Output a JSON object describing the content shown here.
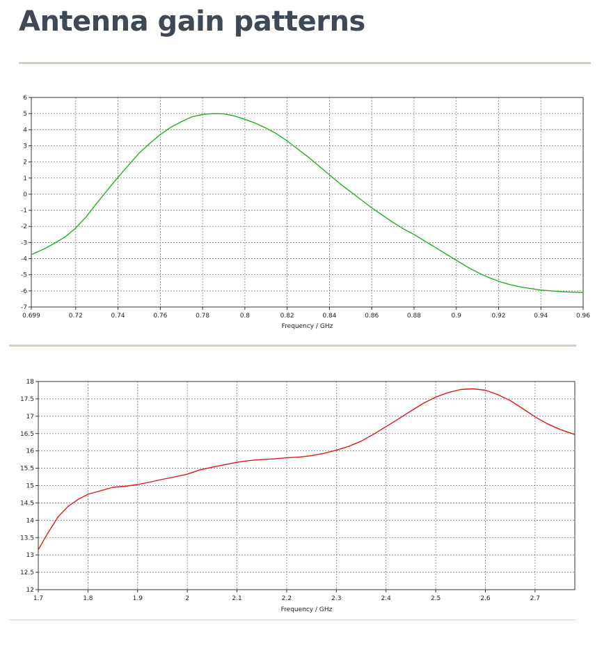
{
  "page": {
    "title": "Antenna gain patterns"
  },
  "chart_data": [
    {
      "type": "line",
      "title": "",
      "xlabel": "Frequency / GHz",
      "ylabel": "",
      "xlim": [
        0.699,
        0.96
      ],
      "ylim": [
        -7,
        6
      ],
      "grid": true,
      "x_ticks": [
        0.699,
        0.72,
        0.74,
        0.76,
        0.78,
        0.8,
        0.82,
        0.84,
        0.86,
        0.88,
        0.9,
        0.92,
        0.94,
        0.96
      ],
      "x_tick_labels": [
        "0.699",
        "0.72",
        "0.74",
        "0.76",
        "0.78",
        "0.8",
        "0.82",
        "0.84",
        "0.86",
        "0.88",
        "0.9",
        "0.92",
        "0.94",
        "0.96"
      ],
      "y_ticks": [
        -7,
        -6,
        -5,
        -4,
        -3,
        -2,
        -1,
        0,
        1,
        2,
        3,
        4,
        5,
        6
      ],
      "y_tick_labels": [
        "-7",
        "-6",
        "-5",
        "-4",
        "-3",
        "-2",
        "-1",
        "0",
        "1",
        "2",
        "3",
        "4",
        "5",
        "6"
      ],
      "series": [
        {
          "color": "#22b022",
          "x": [
            0.699,
            0.705,
            0.71,
            0.715,
            0.72,
            0.725,
            0.73,
            0.735,
            0.74,
            0.745,
            0.75,
            0.755,
            0.76,
            0.765,
            0.77,
            0.775,
            0.78,
            0.785,
            0.79,
            0.795,
            0.8,
            0.805,
            0.81,
            0.815,
            0.82,
            0.825,
            0.83,
            0.835,
            0.84,
            0.845,
            0.85,
            0.855,
            0.86,
            0.865,
            0.87,
            0.875,
            0.88,
            0.885,
            0.89,
            0.895,
            0.9,
            0.905,
            0.91,
            0.915,
            0.92,
            0.925,
            0.93,
            0.935,
            0.94,
            0.945,
            0.95,
            0.955,
            0.96
          ],
          "y": [
            -3.75,
            -3.4,
            -3.05,
            -2.65,
            -2.1,
            -1.4,
            -0.55,
            0.25,
            1.05,
            1.8,
            2.55,
            3.15,
            3.7,
            4.15,
            4.5,
            4.8,
            4.95,
            5.0,
            4.98,
            4.85,
            4.65,
            4.4,
            4.1,
            3.75,
            3.3,
            2.8,
            2.3,
            1.75,
            1.2,
            0.65,
            0.15,
            -0.35,
            -0.85,
            -1.3,
            -1.75,
            -2.15,
            -2.5,
            -2.9,
            -3.3,
            -3.7,
            -4.1,
            -4.5,
            -4.85,
            -5.15,
            -5.4,
            -5.6,
            -5.75,
            -5.85,
            -5.95,
            -6.0,
            -6.05,
            -6.08,
            -6.1
          ]
        }
      ]
    },
    {
      "type": "line",
      "title": "",
      "xlabel": "Frequency / GHz",
      "ylabel": "",
      "xlim": [
        1.7,
        2.78
      ],
      "ylim": [
        12,
        18
      ],
      "grid": true,
      "x_ticks": [
        1.7,
        1.8,
        1.9,
        2.0,
        2.1,
        2.2,
        2.3,
        2.4,
        2.5,
        2.6,
        2.7
      ],
      "x_tick_labels": [
        "1.7",
        "1.8",
        "1.9",
        "2",
        "2.1",
        "2.2",
        "2.3",
        "2.4",
        "2.5",
        "2.6",
        "2.7"
      ],
      "y_ticks": [
        12,
        12.5,
        13,
        13.5,
        14,
        14.5,
        15,
        15.5,
        16,
        16.5,
        17,
        17.5,
        18
      ],
      "y_tick_labels": [
        "12",
        "12.5",
        "13",
        "13.5",
        "14",
        "14.5",
        "15",
        "15.5",
        "16",
        "16.5",
        "17",
        "17.5",
        "18"
      ],
      "series": [
        {
          "color": "#e01818",
          "x": [
            1.7,
            1.72,
            1.74,
            1.76,
            1.78,
            1.8,
            1.825,
            1.85,
            1.875,
            1.9,
            1.925,
            1.95,
            1.975,
            2.0,
            2.025,
            2.05,
            2.075,
            2.1,
            2.125,
            2.15,
            2.175,
            2.2,
            2.225,
            2.25,
            2.275,
            2.3,
            2.325,
            2.35,
            2.375,
            2.4,
            2.425,
            2.45,
            2.475,
            2.5,
            2.525,
            2.55,
            2.575,
            2.6,
            2.625,
            2.65,
            2.675,
            2.7,
            2.725,
            2.75,
            2.78
          ],
          "y": [
            13.15,
            13.65,
            14.1,
            14.4,
            14.6,
            14.75,
            14.85,
            14.95,
            14.98,
            15.03,
            15.1,
            15.18,
            15.25,
            15.33,
            15.45,
            15.53,
            15.6,
            15.67,
            15.72,
            15.75,
            15.77,
            15.8,
            15.82,
            15.86,
            15.93,
            16.02,
            16.13,
            16.28,
            16.48,
            16.7,
            16.92,
            17.15,
            17.37,
            17.55,
            17.68,
            17.77,
            17.79,
            17.75,
            17.62,
            17.45,
            17.22,
            16.98,
            16.78,
            16.62,
            16.47
          ]
        }
      ]
    }
  ]
}
